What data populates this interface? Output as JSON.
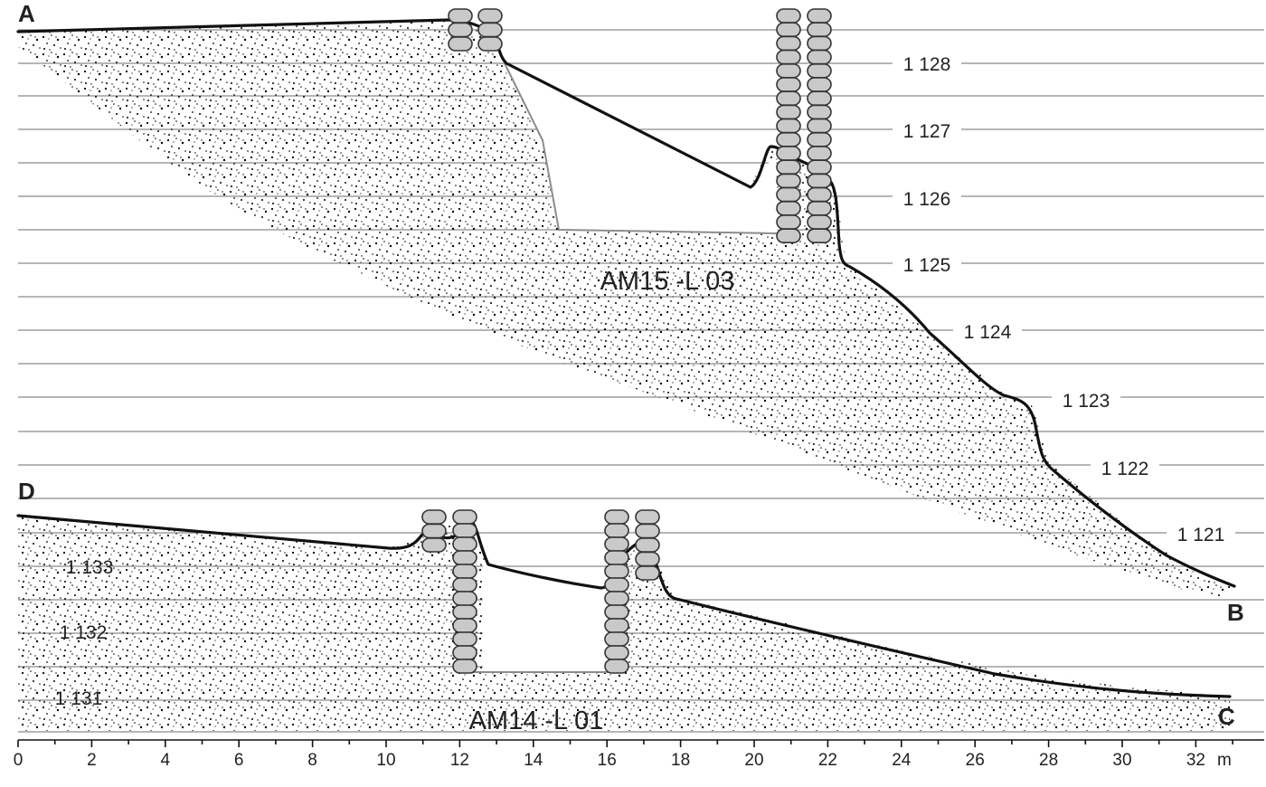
{
  "figure": {
    "upper_section": {
      "start_label": "A",
      "end_label": "B",
      "unit_label": "AM15 -L 03",
      "elevation_labels": [
        "1 128",
        "1 127",
        "1 126",
        "1 125",
        "1 124",
        "1 123",
        "1 122",
        "1 121"
      ]
    },
    "lower_section": {
      "start_label": "D",
      "end_label": "C",
      "unit_label": "AM14 -L 01",
      "elevation_labels": [
        "1 133",
        "1 132",
        "1 131"
      ]
    },
    "axis": {
      "ticks": [
        "0",
        "2",
        "4",
        "6",
        "8",
        "10",
        "12",
        "14",
        "16",
        "18",
        "20",
        "22",
        "24",
        "26",
        "28",
        "30",
        "32"
      ],
      "unit": "m"
    },
    "colors": {
      "ground_line": "#111111",
      "sandbag_fill": "#c9c9c9",
      "grid_line": "#8a8a8a",
      "stipple": "#000000"
    }
  }
}
